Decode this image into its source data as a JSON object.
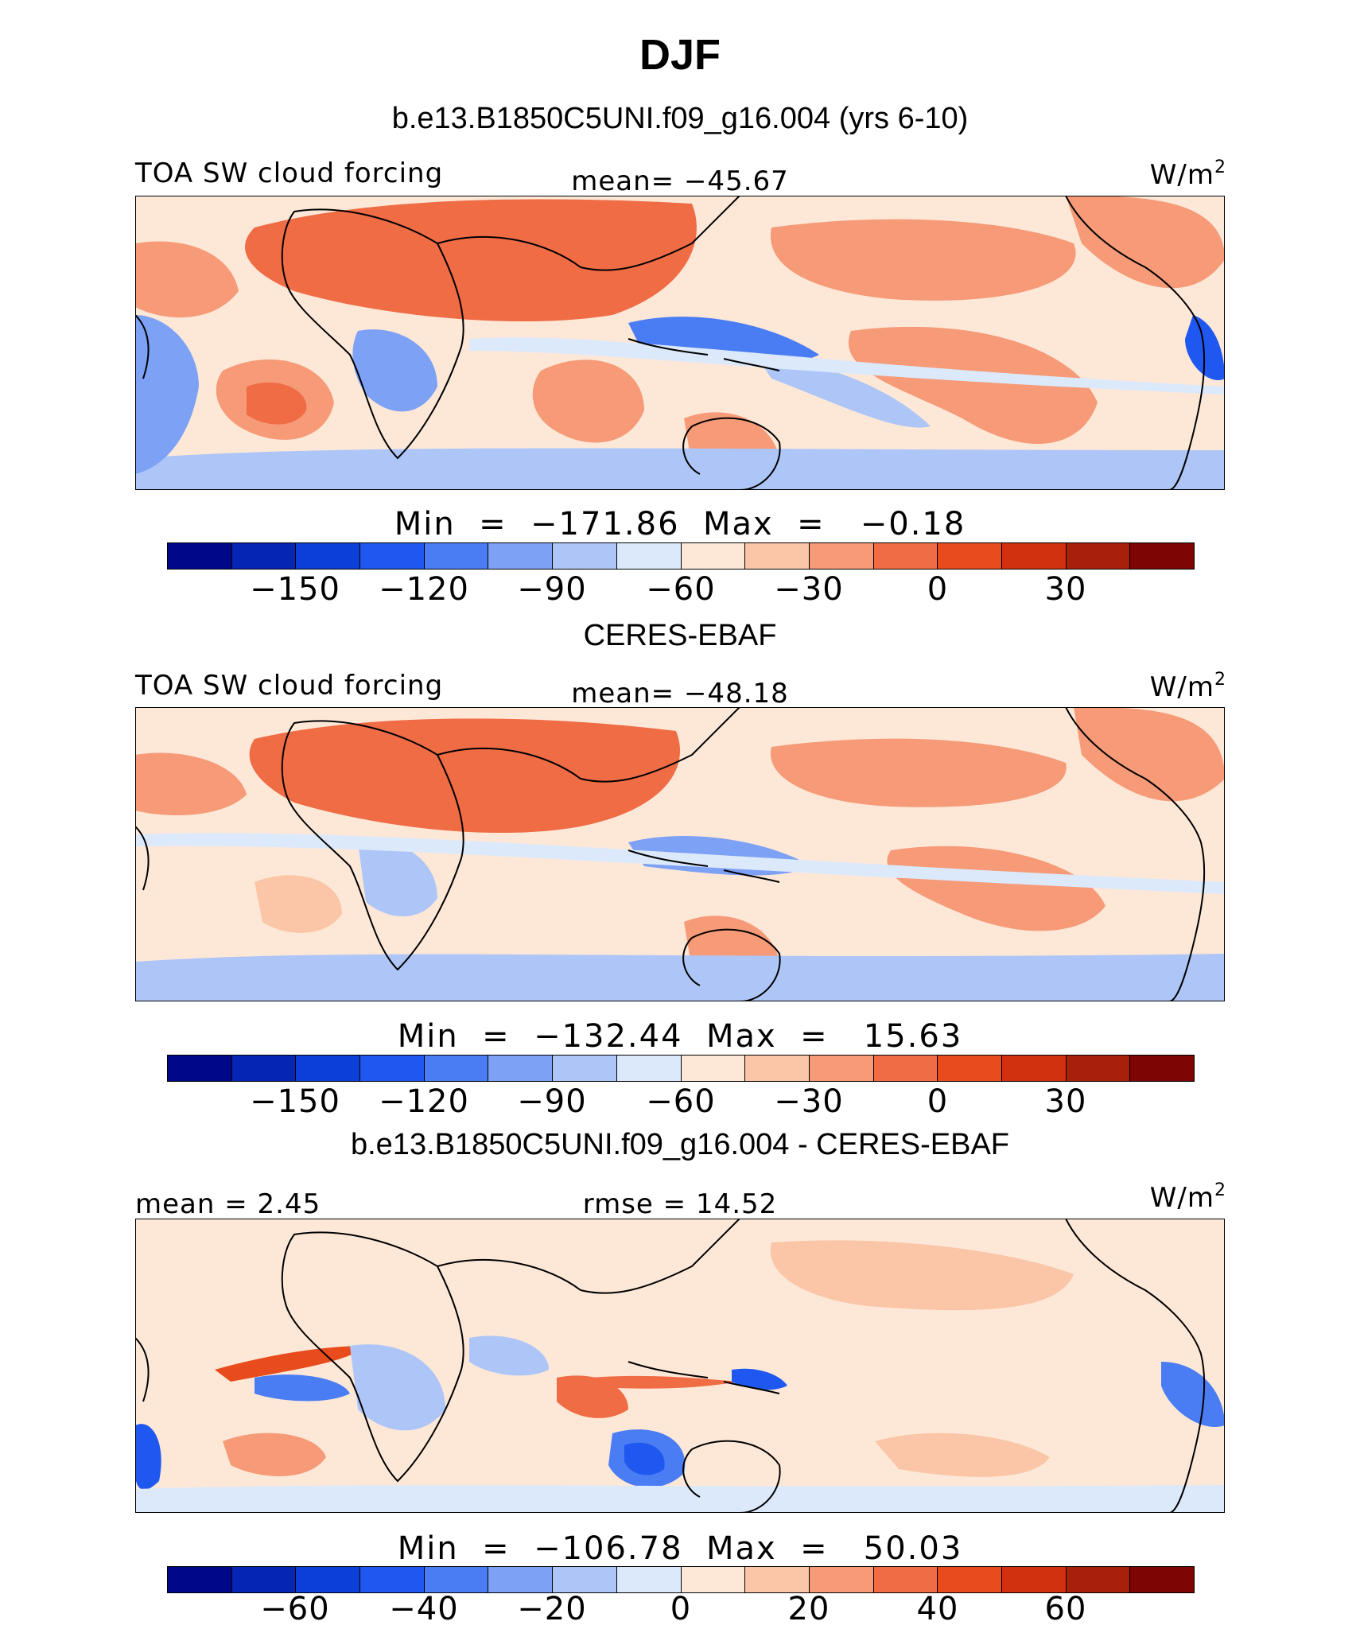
{
  "figure": {
    "season": "DJF",
    "units_base": "W/m",
    "units_exp": "2"
  },
  "panels": [
    {
      "heading": "b.e13.B1850C5UNI.f09_g16.004 (yrs 6-10)",
      "left_label": "TOA SW cloud forcing",
      "center_label": "mean= −45.67",
      "minmax": "Min  =  −171.86  Max  =   −0.18",
      "ticks": [
        "−150",
        "−120",
        "−90",
        "−60",
        "−30",
        "0",
        "30"
      ]
    },
    {
      "heading": "CERES-EBAF",
      "left_label": "TOA SW cloud forcing",
      "center_label": "mean= −48.18",
      "minmax": "Min  =  −132.44  Max  =   15.63",
      "ticks": [
        "−150",
        "−120",
        "−90",
        "−60",
        "−30",
        "0",
        "30"
      ]
    },
    {
      "heading": "b.e13.B1850C5UNI.f09_g16.004 - CERES-EBAF",
      "left_label": "mean  =   2.45",
      "center_label": "rmse  =   14.52",
      "minmax": "Min  =  −106.78  Max  =   50.03",
      "ticks": [
        "−60",
        "−40",
        "−20",
        "0",
        "20",
        "40",
        "60"
      ]
    }
  ],
  "colorbar_colors": [
    "#00088a",
    "#0526b5",
    "#0b3fd8",
    "#1f58f0",
    "#4a7cf3",
    "#7da1f5",
    "#aec6f7",
    "#dce9fb",
    "#fde8d8",
    "#fbc6a8",
    "#f69a78",
    "#ef6c45",
    "#e84b1c",
    "#d2310f",
    "#a8200c",
    "#7d0504"
  ]
}
